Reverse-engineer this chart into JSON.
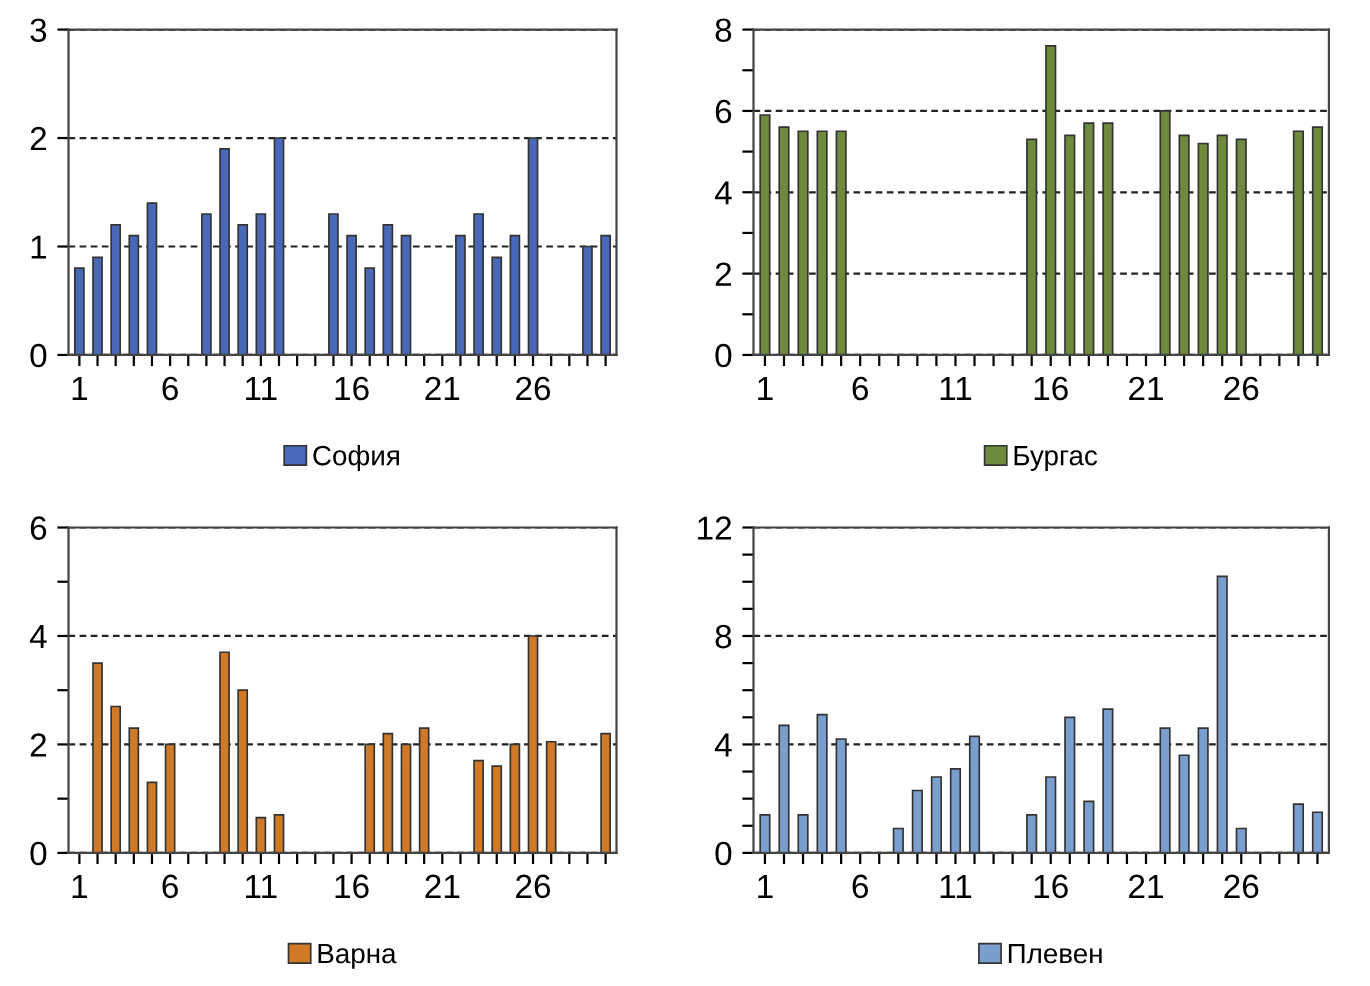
{
  "chart_data": [
    {
      "type": "bar",
      "categories": [
        "1",
        null,
        null,
        null,
        null,
        "6",
        null,
        null,
        null,
        null,
        "11",
        null,
        null,
        null,
        null,
        "16",
        null,
        null,
        null,
        null,
        "21",
        null,
        null,
        null,
        null,
        "26",
        null,
        null,
        null,
        null
      ],
      "series": [
        {
          "name": "София",
          "color": "#4a68b8",
          "values": [
            0.8,
            0.9,
            1.2,
            1.1,
            1.4,
            null,
            null,
            1.3,
            1.9,
            1.2,
            1.3,
            2.0,
            null,
            null,
            1.3,
            1.1,
            0.8,
            1.2,
            1.1,
            null,
            null,
            1.1,
            1.3,
            0.9,
            1.1,
            2.0,
            null,
            null,
            1.0,
            1.1
          ]
        }
      ],
      "ylim": [
        0,
        3
      ],
      "yticks": [
        0,
        1,
        2,
        3
      ],
      "grid": "y",
      "legend": "bottom"
    },
    {
      "type": "bar",
      "categories": [
        "1",
        null,
        null,
        null,
        null,
        "6",
        null,
        null,
        null,
        null,
        "11",
        null,
        null,
        null,
        null,
        "16",
        null,
        null,
        null,
        null,
        "21",
        null,
        null,
        null,
        null,
        "26",
        null,
        null,
        null,
        null
      ],
      "series": [
        {
          "name": "Бургас",
          "color": "#6f8a3c",
          "values": [
            5.9,
            5.6,
            5.5,
            5.5,
            5.5,
            null,
            null,
            null,
            null,
            null,
            null,
            null,
            null,
            null,
            5.3,
            7.6,
            5.4,
            5.7,
            5.7,
            null,
            null,
            6.0,
            5.4,
            5.2,
            5.4,
            5.3,
            null,
            null,
            5.5,
            5.6
          ]
        }
      ],
      "ylim": [
        0,
        8
      ],
      "yticks": [
        0,
        {
          "value": 1,
          "label": null
        },
        2,
        {
          "value": 3,
          "label": null
        },
        4,
        {
          "value": 5,
          "label": null
        },
        6,
        {
          "value": 7,
          "label": null
        },
        8
      ],
      "grid": "y",
      "legend": "bottom"
    },
    {
      "type": "bar",
      "categories": [
        "1",
        null,
        null,
        null,
        null,
        "6",
        null,
        null,
        null,
        null,
        "11",
        null,
        null,
        null,
        null,
        "16",
        null,
        null,
        null,
        null,
        "21",
        null,
        null,
        null,
        null,
        "26",
        null,
        null,
        null,
        null
      ],
      "series": [
        {
          "name": "Варна",
          "color": "#d07a28",
          "values": [
            null,
            3.5,
            2.7,
            2.3,
            1.3,
            2.0,
            null,
            null,
            3.7,
            3.0,
            0.65,
            0.7,
            null,
            null,
            null,
            null,
            2.0,
            2.2,
            2.0,
            2.3,
            null,
            null,
            1.7,
            1.6,
            2.0,
            4.0,
            2.05,
            null,
            null,
            2.2
          ]
        }
      ],
      "ylim": [
        0,
        6
      ],
      "yticks": [
        0,
        {
          "value": 1,
          "label": null
        },
        2,
        {
          "value": 3,
          "label": null
        },
        4,
        {
          "value": 5,
          "label": null
        },
        6
      ],
      "grid": "y",
      "legend": "bottom"
    },
    {
      "type": "bar",
      "categories": [
        "1",
        null,
        null,
        null,
        null,
        "6",
        null,
        null,
        null,
        null,
        "11",
        null,
        null,
        null,
        null,
        "16",
        null,
        null,
        null,
        null,
        "21",
        null,
        null,
        null,
        null,
        "26",
        null,
        null,
        null,
        null
      ],
      "series": [
        {
          "name": "Плевен",
          "color": "#7a9fcf",
          "values": [
            1.4,
            4.7,
            1.4,
            5.1,
            4.2,
            null,
            null,
            0.9,
            2.3,
            2.8,
            3.1,
            4.3,
            null,
            null,
            1.4,
            2.8,
            5.0,
            1.9,
            5.3,
            null,
            null,
            4.6,
            3.6,
            4.6,
            10.2,
            0.9,
            null,
            null,
            1.8,
            1.5
          ]
        }
      ],
      "ylim": [
        0,
        12
      ],
      "yticks": [
        0,
        {
          "value": 1,
          "label": null
        },
        {
          "value": 2,
          "label": null
        },
        {
          "value": 3,
          "label": null
        },
        4,
        {
          "value": 5,
          "label": null
        },
        {
          "value": 6,
          "label": null
        },
        {
          "value": 7,
          "label": null
        },
        8,
        {
          "value": 9,
          "label": null
        },
        {
          "value": 10,
          "label": null
        },
        {
          "value": 11,
          "label": null
        },
        12
      ],
      "grid": "y",
      "legend": "bottom"
    }
  ]
}
